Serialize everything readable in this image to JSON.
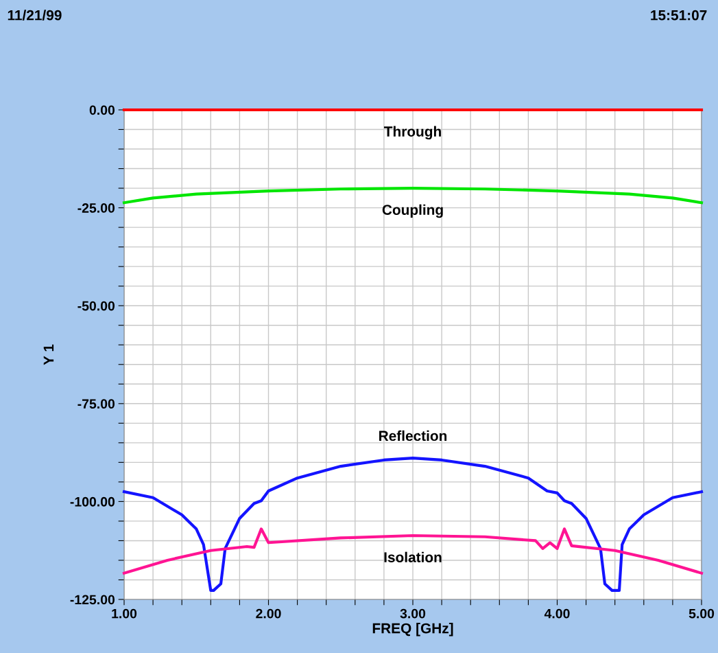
{
  "chart_data": {
    "type": "line",
    "xlabel": "FREQ [GHz]",
    "ylabel": "Y 1",
    "annotations": [
      "11/21/99",
      "15:51:07"
    ],
    "xlim": [
      1,
      5
    ],
    "ylim": [
      -125,
      0
    ],
    "xticks": [
      {
        "value": 1,
        "label": "1.00"
      },
      {
        "value": 1.2,
        "label": null
      },
      {
        "value": 1.4,
        "label": null
      },
      {
        "value": 1.6,
        "label": null
      },
      {
        "value": 1.8,
        "label": null
      },
      {
        "value": 2,
        "label": "2.00"
      },
      {
        "value": 2.2,
        "label": null
      },
      {
        "value": 2.4,
        "label": null
      },
      {
        "value": 2.6,
        "label": null
      },
      {
        "value": 2.8,
        "label": null
      },
      {
        "value": 3,
        "label": "3.00"
      },
      {
        "value": 3.2,
        "label": null
      },
      {
        "value": 3.4,
        "label": null
      },
      {
        "value": 3.6,
        "label": null
      },
      {
        "value": 3.8,
        "label": null
      },
      {
        "value": 4,
        "label": "4.00"
      },
      {
        "value": 4.2,
        "label": null
      },
      {
        "value": 4.4,
        "label": null
      },
      {
        "value": 4.6,
        "label": null
      },
      {
        "value": 4.8,
        "label": null
      },
      {
        "value": 5,
        "label": "5.00"
      }
    ],
    "yticks": [
      {
        "value": -125,
        "label": "-125.00"
      },
      {
        "value": -120,
        "label": null
      },
      {
        "value": -115,
        "label": null
      },
      {
        "value": -110,
        "label": null
      },
      {
        "value": -105,
        "label": null
      },
      {
        "value": -100,
        "label": "-100.00"
      },
      {
        "value": -95,
        "label": null
      },
      {
        "value": -90,
        "label": null
      },
      {
        "value": -85,
        "label": null
      },
      {
        "value": -80,
        "label": null
      },
      {
        "value": -75,
        "label": "-75.00"
      },
      {
        "value": -70,
        "label": null
      },
      {
        "value": -65,
        "label": null
      },
      {
        "value": -60,
        "label": null
      },
      {
        "value": -55,
        "label": null
      },
      {
        "value": -50,
        "label": "-50.00"
      },
      {
        "value": -45,
        "label": null
      },
      {
        "value": -40,
        "label": null
      },
      {
        "value": -35,
        "label": null
      },
      {
        "value": -30,
        "label": null
      },
      {
        "value": -25,
        "label": "-25.00"
      },
      {
        "value": -20,
        "label": null
      },
      {
        "value": -15,
        "label": null
      },
      {
        "value": -10,
        "label": null
      },
      {
        "value": -5,
        "label": null
      },
      {
        "value": 0,
        "label": "0.00"
      }
    ],
    "grid": true,
    "marker": "none",
    "line_style": "solid",
    "series": [
      {
        "name": "Through",
        "color": "#ff0000",
        "x": [
          1,
          5
        ],
        "values": [
          0,
          0
        ]
      },
      {
        "name": "Coupling",
        "color": "#00e600",
        "x": [
          1,
          1.2,
          1.5,
          2,
          2.5,
          3,
          3.5,
          4,
          4.5,
          4.8,
          5
        ],
        "values": [
          -23.7,
          -22.5,
          -21.5,
          -20.7,
          -20.2,
          -20,
          -20.2,
          -20.7,
          -21.5,
          -22.5,
          -23.7
        ]
      },
      {
        "name": "Reflection",
        "color": "#1414ff",
        "x": [
          1,
          1.2,
          1.4,
          1.5,
          1.55,
          1.6,
          1.62,
          1.67,
          1.7,
          1.8,
          1.9,
          1.95,
          2,
          2.2,
          2.5,
          2.8,
          3,
          3.2,
          3.5,
          3.8,
          3.93,
          4,
          4.05,
          4.1,
          4.2,
          4.3,
          4.33,
          4.38,
          4.43,
          4.45,
          4.5,
          4.6,
          4.8,
          5
        ],
        "values": [
          -97.5,
          -99,
          -103.4,
          -107,
          -111,
          -122.7,
          -122.7,
          -121,
          -112,
          -104.3,
          -100.5,
          -99.8,
          -97.3,
          -94,
          -91,
          -89.4,
          -88.9,
          -89.4,
          -91,
          -94,
          -97.3,
          -97.8,
          -99.8,
          -100.5,
          -104.3,
          -112,
          -121,
          -122.7,
          -122.7,
          -111,
          -107,
          -103.4,
          -99,
          -97.5
        ]
      },
      {
        "name": "Isolation",
        "color": "#ff1493",
        "x": [
          1,
          1.3,
          1.6,
          1.85,
          1.9,
          1.95,
          2,
          2.5,
          3,
          3.5,
          3.85,
          3.9,
          3.95,
          4,
          4.05,
          4.1,
          4.4,
          4.7,
          5
        ],
        "values": [
          -118.3,
          -115,
          -112.5,
          -111.5,
          -111.7,
          -107,
          -110.5,
          -109.3,
          -108.7,
          -109,
          -110,
          -112,
          -110.5,
          -112,
          -107,
          -111.3,
          -112.5,
          -115,
          -118.3
        ]
      }
    ]
  }
}
